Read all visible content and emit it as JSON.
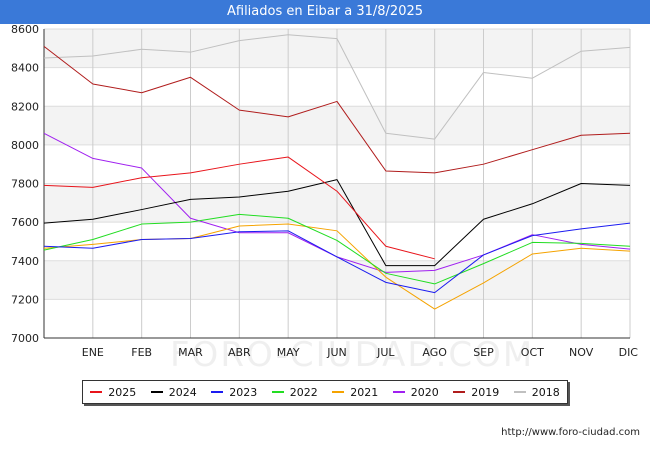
{
  "chart_data": {
    "type": "line",
    "title": "Afiliados en Eibar a 31/8/2025",
    "categories": [
      "ENE",
      "FEB",
      "MAR",
      "ABR",
      "MAY",
      "JUN",
      "JUL",
      "AGO",
      "SEP",
      "OCT",
      "NOV",
      "DIC"
    ],
    "ylim": [
      7000,
      8600
    ],
    "yticks": [
      7000,
      7200,
      7400,
      7600,
      7800,
      8000,
      8200,
      8400,
      8600
    ],
    "grid": true,
    "legend_position": "bottom",
    "series": [
      {
        "name": "2025",
        "color": "#e8141b",
        "start": 7790,
        "values": [
          7780,
          7830,
          7855,
          7900,
          7937,
          7760,
          7475,
          7410,
          null,
          null,
          null,
          null
        ]
      },
      {
        "name": "2024",
        "color": "#000000",
        "start": 7595,
        "values": [
          7615,
          7665,
          7718,
          7730,
          7760,
          7820,
          7375,
          7375,
          7615,
          7695,
          7800,
          7790
        ]
      },
      {
        "name": "2023",
        "color": "#1c1cf0",
        "start": 7475,
        "values": [
          7465,
          7510,
          7515,
          7550,
          7555,
          7420,
          7288,
          7235,
          7430,
          7530,
          7565,
          7595
        ]
      },
      {
        "name": "2022",
        "color": "#22dd22",
        "start": 7455,
        "values": [
          7510,
          7590,
          7600,
          7640,
          7620,
          7505,
          7335,
          7280,
          7385,
          7495,
          7490,
          7475
        ]
      },
      {
        "name": "2021",
        "color": "#f5a300",
        "start": 7465,
        "values": [
          7485,
          7510,
          7515,
          7580,
          7590,
          7555,
          7315,
          7150,
          7285,
          7435,
          7465,
          7450
        ]
      },
      {
        "name": "2020",
        "color": "#a020f0",
        "start": 8060,
        "values": [
          7930,
          7880,
          7620,
          7545,
          7545,
          7420,
          7340,
          7350,
          7430,
          7535,
          7485,
          7460
        ]
      },
      {
        "name": "2019",
        "color": "#b01c1c",
        "start": 8510,
        "values": [
          8315,
          8270,
          8350,
          8180,
          8145,
          8225,
          7865,
          7855,
          7900,
          7975,
          8050,
          8060
        ]
      },
      {
        "name": "2018",
        "color": "#c0c0c0",
        "start": 8450,
        "values": [
          8460,
          8495,
          8480,
          8540,
          8570,
          8550,
          8060,
          8030,
          8375,
          8345,
          8485,
          8505
        ]
      }
    ]
  },
  "source": "http://www.foro-ciudad.com",
  "watermark": "FORO-CIUDAD.COM"
}
